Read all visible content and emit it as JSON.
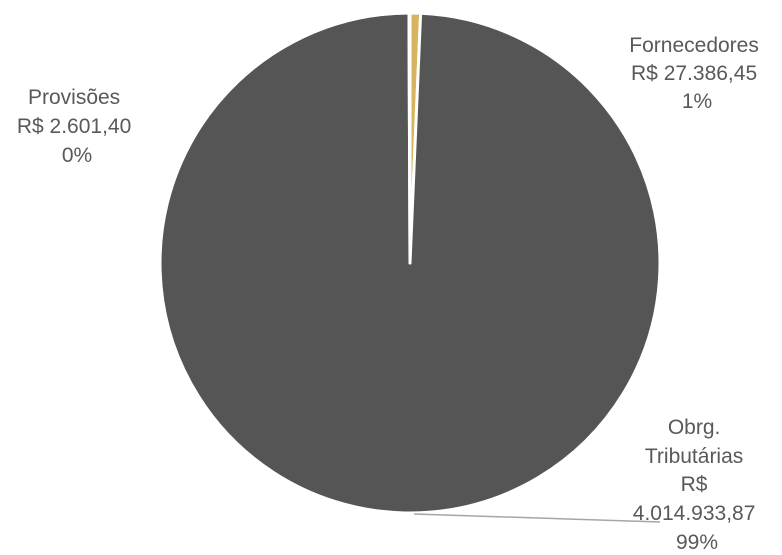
{
  "chart_data": {
    "type": "pie",
    "title": "",
    "slices": [
      {
        "category": "Fornecedores",
        "value": 27386.45,
        "value_label": "R$ 27.386,45",
        "percent_label": "1%",
        "color": "#d9b45e"
      },
      {
        "category": "Obrg. Tributárias",
        "value": 4014933.87,
        "value_label": "R$ 4.014.933,87",
        "percent_label": "99%",
        "color": "#555555"
      },
      {
        "category": "Provisões",
        "value": 2601.4,
        "value_label": "R$ 2.601,40",
        "percent_label": "0%",
        "color": "#c8c8c8"
      }
    ],
    "data_labels": true,
    "legend": "none",
    "slice_border_color": "#ffffff"
  }
}
